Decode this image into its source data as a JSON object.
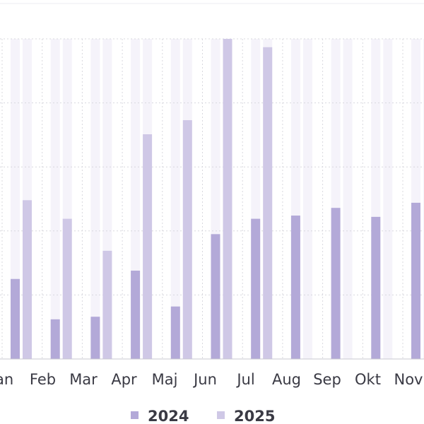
{
  "chart_data": {
    "type": "bar",
    "categories": [
      "Jan",
      "Feb",
      "Mar",
      "Apr",
      "Maj",
      "Jun",
      "Jul",
      "Aug",
      "Sep",
      "Okt",
      "Nov"
    ],
    "series": [
      {
        "name": "2024",
        "color": "#b3a9d8",
        "values": [
          1.25,
          0.62,
          0.66,
          1.38,
          0.82,
          1.95,
          2.19,
          2.24,
          2.36,
          2.22,
          2.44
        ]
      },
      {
        "name": "2025",
        "color": "#cfc8e6",
        "values": [
          2.48,
          2.19,
          1.69,
          3.51,
          3.73,
          5.0,
          4.87,
          null,
          null,
          null,
          null
        ]
      }
    ],
    "ylim": [
      0,
      5
    ],
    "yticks": [
      0,
      1,
      2,
      3,
      4,
      5
    ],
    "grid": true
  }
}
